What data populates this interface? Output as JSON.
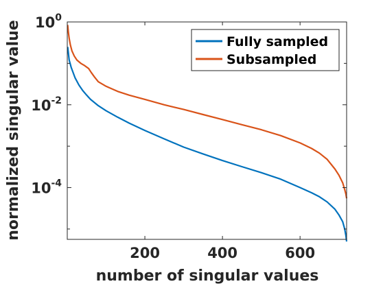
{
  "chart_data": {
    "type": "line",
    "xlabel": "number of singular values",
    "ylabel": "normalized singular value",
    "xlim": [
      0,
      720
    ],
    "ylim_log10": [
      -5.25,
      0
    ],
    "y_scale": "log",
    "grid": false,
    "legend_placement": "top-right",
    "x_ticks": [
      200,
      400,
      600
    ],
    "x_tick_labels": [
      "200",
      "400",
      "600"
    ],
    "y_ticks": [
      {
        "value_log10": 0,
        "base": "10",
        "exp": "0"
      },
      {
        "value_log10": -2,
        "base": "10",
        "exp": "-2"
      },
      {
        "value_log10": -4,
        "base": "10",
        "exp": "-4"
      }
    ],
    "series": [
      {
        "name": "Fully sampled",
        "color": "#0072BD",
        "x": [
          1,
          5,
          10,
          20,
          30,
          40,
          50,
          60,
          80,
          100,
          130,
          160,
          200,
          250,
          300,
          350,
          400,
          450,
          500,
          550,
          600,
          630,
          650,
          670,
          690,
          700,
          710,
          715,
          718,
          720
        ],
        "y": [
          0.25,
          0.12,
          0.08,
          0.045,
          0.03,
          0.022,
          0.017,
          0.0135,
          0.0095,
          0.0072,
          0.005,
          0.0036,
          0.0024,
          0.0015,
          0.00095,
          0.00065,
          0.00045,
          0.00032,
          0.00023,
          0.00016,
          0.0001,
          7.5e-05,
          6e-05,
          4.5e-05,
          3e-05,
          2.2e-05,
          1.5e-05,
          1e-05,
          7e-06,
          5e-06
        ]
      },
      {
        "name": "Subsampled",
        "color": "#D95319",
        "x": [
          1,
          3,
          5,
          8,
          12,
          18,
          25,
          35,
          45,
          55,
          62,
          70,
          80,
          100,
          130,
          160,
          200,
          250,
          300,
          350,
          400,
          450,
          500,
          550,
          600,
          630,
          650,
          670,
          690,
          700,
          710,
          715,
          718,
          720
        ],
        "y": [
          0.85,
          0.55,
          0.4,
          0.28,
          0.2,
          0.15,
          0.12,
          0.1,
          0.088,
          0.075,
          0.06,
          0.047,
          0.036,
          0.028,
          0.021,
          0.017,
          0.0135,
          0.01,
          0.0077,
          0.0058,
          0.0044,
          0.0033,
          0.0025,
          0.0018,
          0.0012,
          0.00088,
          0.00068,
          0.00048,
          0.00028,
          0.0002,
          0.00013,
          9e-05,
          7e-05,
          5.5e-05
        ]
      }
    ]
  }
}
